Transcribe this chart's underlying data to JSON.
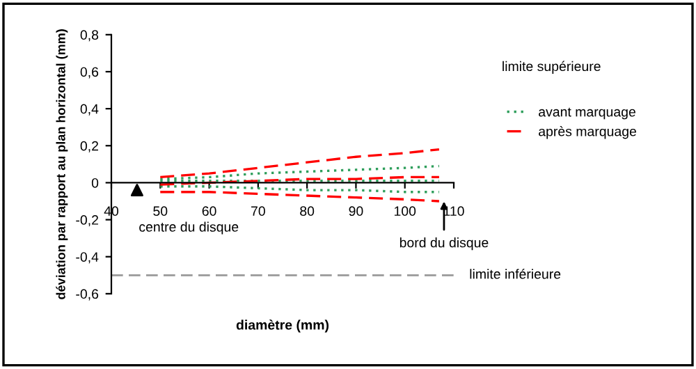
{
  "chart_data": {
    "type": "line",
    "xlabel": "diamètre (mm)",
    "ylabel": "déviation par rapport au plan horizontal (mm)",
    "x": [
      50,
      60,
      70,
      80,
      90,
      100,
      107
    ],
    "series": [
      {
        "name": "avant marquage",
        "color": "#2e9e5b",
        "line_style": "dotted",
        "values": [
          0.02,
          0.03,
          0.05,
          0.06,
          0.07,
          0.08,
          0.09
        ]
      },
      {
        "color": "#2e9e5b",
        "line_style": "dotted",
        "values": [
          0.01,
          0.01,
          0.01,
          0.01,
          0.01,
          0.01,
          0.01
        ]
      },
      {
        "color": "#2e9e5b",
        "line_style": "dotted",
        "values": [
          -0.02,
          -0.02,
          -0.03,
          -0.04,
          -0.04,
          -0.05,
          -0.05
        ]
      },
      {
        "name": "après marquage",
        "color": "#ff0000",
        "line_style": "dashed",
        "values": [
          0.03,
          0.05,
          0.08,
          0.11,
          0.14,
          0.16,
          0.18
        ]
      },
      {
        "color": "#ff0000",
        "line_style": "dashed",
        "values": [
          -0.01,
          0.0,
          0.01,
          0.02,
          0.02,
          0.03,
          0.03
        ]
      },
      {
        "color": "#ff0000",
        "line_style": "dashed",
        "values": [
          -0.05,
          -0.05,
          -0.06,
          -0.07,
          -0.08,
          -0.09,
          -0.1
        ]
      }
    ],
    "xlim": [
      40,
      110
    ],
    "xticks": [
      40,
      50,
      60,
      70,
      80,
      90,
      100,
      110
    ],
    "ylim": [
      -0.6,
      0.8
    ],
    "yticks": [
      {
        "value": -0.6,
        "label": "-0,6"
      },
      {
        "value": -0.4,
        "label": "-0,4"
      },
      {
        "value": -0.2,
        "label": "-0,2"
      },
      {
        "value": 0,
        "label": "0"
      },
      {
        "value": 0.2,
        "label": "0,2"
      },
      {
        "value": 0.4,
        "label": "0,4"
      },
      {
        "value": 0.6,
        "label": "0,6"
      },
      {
        "value": 0.8,
        "label": "0,8"
      }
    ],
    "ref_lines": [
      {
        "axis": "y",
        "value": -0.5,
        "label": "limite inférieure",
        "color": "#999999",
        "line_style": "dashed"
      }
    ],
    "annotations": [
      "limite supérieure",
      "centre du disque",
      {
        "text": "bord du disque",
        "x": 108,
        "y": -0.08
      }
    ],
    "legend": "right",
    "grid": false,
    "marker": "none"
  }
}
